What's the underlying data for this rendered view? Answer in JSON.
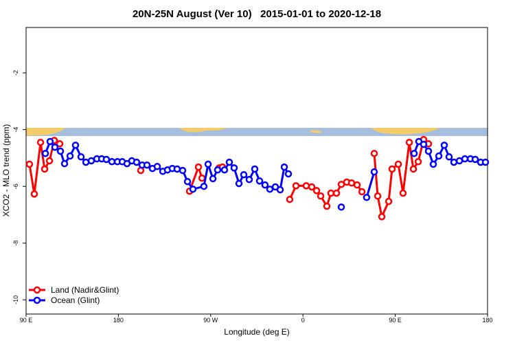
{
  "chart_data": {
    "type": "line",
    "title": "20N-25N August (Ver 10)   2015-01-01 to 2020-12-18",
    "x_label": "Longitude (deg E)",
    "y_label": "XCO2 - MLO trend (ppm)",
    "xlim": [
      90,
      540
    ],
    "ylim": [
      -10.5,
      -0.4
    ],
    "xticks": [
      {
        "value": 90,
        "label": "90 E"
      },
      180,
      {
        "value": 270,
        "label": "90 W"
      },
      {
        "value": 360,
        "label": "0"
      },
      {
        "value": 450,
        "label": "90 E"
      },
      {
        "value": 540,
        "label": "180"
      }
    ],
    "yticks": [
      -10,
      -8,
      -6,
      -4,
      -2
    ],
    "legend": "bottomleft",
    "series": [
      {
        "name": "Land (Nadir&Glint)",
        "color": "#ff0000",
        "x": [
          93.3,
          98.0,
          104.1,
          108.1,
          112.8,
          117.5,
          122.8,
          null,
          201.8,
          null,
          249.4,
          258.1,
          261.5,
          null,
          278.2,
          281.5,
          null,
          347.1,
          353.2,
          363.2,
          368.6,
          373.3,
          377.3,
          383.3,
          387.3,
          392.7,
          397.4,
          402.7,
          407.4,
          412.8,
          417.5,
          null,
          429.5,
          432.9,
          436.9,
          443.6,
          446.9,
          453.0,
          457.6,
          463.7,
          467.7,
          472.4,
          477.7,
          482.4
        ],
        "values": [
          -5.22,
          -6.27,
          -4.45,
          -5.39,
          -5.1,
          -4.38,
          -4.5,
          null,
          -5.44,
          null,
          -6.17,
          -5.32,
          -5.71,
          null,
          -5.35,
          -5.32,
          null,
          -6.46,
          -5.98,
          -5.98,
          -6.02,
          -6.15,
          -6.34,
          -6.7,
          -6.24,
          -6.24,
          -5.93,
          -5.85,
          -5.88,
          -5.95,
          -6.19,
          null,
          -4.84,
          -6.34,
          -7.07,
          -6.53,
          -5.39,
          -5.22,
          -6.24,
          -4.45,
          -5.39,
          -5.13,
          -4.35,
          -4.5
        ]
      },
      {
        "name": "Ocean (Glint)",
        "color": "#0000ff",
        "x": [
          108.8,
          113.4,
          118.1,
          123.5,
          127.5,
          132.9,
          138.2,
          143.6,
          148.3,
          153.6,
          159.0,
          163.7,
          168.3,
          173.7,
          179.1,
          183.8,
          188.4,
          193.1,
          197.8,
          203.2,
          207.9,
          213.2,
          217.9,
          223.3,
          227.9,
          232.6,
          237.3,
          242.7,
          247.4,
          252.7,
          263.4,
          267.5,
          272.2,
          276.8,
          283.5,
          288.2,
          292.9,
          297.6,
          302.3,
          307.6,
          313.0,
          317.7,
          323.0,
          327.7,
          333.1,
          337.8,
          341.8,
          345.8,
          null,
          397.4,
          null,
          422.1,
          429.5,
          null,
          468.4,
          473.0,
          477.7,
          482.4,
          487.1,
          492.5,
          497.8,
          502.5,
          507.2,
          512.6,
          517.9,
          523.3,
          528.0,
          533.3,
          538.0
        ],
        "values": [
          -4.84,
          -4.42,
          -4.62,
          -4.76,
          -5.2,
          -4.93,
          -4.55,
          -4.96,
          -5.15,
          -5.1,
          -5.03,
          -5.03,
          -5.05,
          -5.13,
          -5.13,
          -5.13,
          -5.2,
          -5.1,
          -5.15,
          -5.25,
          -5.25,
          -5.37,
          -5.3,
          -5.47,
          -5.42,
          -5.37,
          -5.39,
          -5.44,
          -5.83,
          -6.1,
          -6.0,
          -5.22,
          -5.73,
          -5.42,
          -5.42,
          -5.15,
          -5.35,
          -5.9,
          -5.59,
          -5.76,
          -5.39,
          -5.81,
          -5.95,
          -6.1,
          -6.02,
          -6.12,
          -5.32,
          -5.56,
          null,
          -6.73,
          null,
          -6.39,
          -5.49,
          null,
          -4.84,
          -4.42,
          -4.52,
          -4.76,
          -5.22,
          -4.93,
          -4.55,
          -4.96,
          -5.15,
          -5.1,
          -5.03,
          -5.03,
          -5.05,
          -5.15,
          -5.15
        ]
      }
    ]
  }
}
